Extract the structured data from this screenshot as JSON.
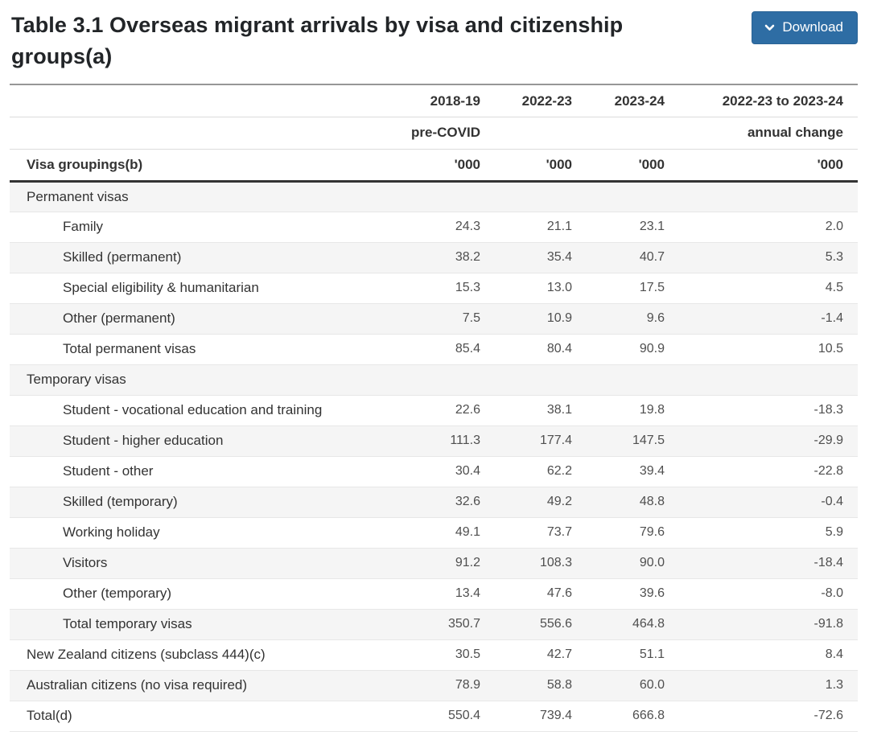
{
  "page": {
    "title": "Table 3.1 Overseas migrant arrivals by visa and citizenship groups(a)"
  },
  "toolbar": {
    "download_label": "Download"
  },
  "colors": {
    "accent_blue": "#2e6da4",
    "stripe_gray": "#f5f5f5",
    "header_rule_dark": "#333333"
  },
  "table": {
    "header": {
      "label_heading": "Visa groupings(b)",
      "years": [
        "2018-19",
        "2022-23",
        "2023-24",
        "2022-23 to 2023-24"
      ],
      "subrow": [
        "pre-COVID",
        "",
        "",
        "annual change"
      ],
      "units": [
        "'000",
        "'000",
        "'000",
        "'000"
      ]
    },
    "rows": [
      {
        "label": "Permanent visas",
        "indent": false,
        "values": [
          "",
          "",
          "",
          ""
        ]
      },
      {
        "label": "Family",
        "indent": true,
        "values": [
          "24.3",
          "21.1",
          "23.1",
          "2.0"
        ]
      },
      {
        "label": "Skilled (permanent)",
        "indent": true,
        "values": [
          "38.2",
          "35.4",
          "40.7",
          "5.3"
        ]
      },
      {
        "label": "Special eligibility & humanitarian",
        "indent": true,
        "values": [
          "15.3",
          "13.0",
          "17.5",
          "4.5"
        ]
      },
      {
        "label": "Other (permanent)",
        "indent": true,
        "values": [
          "7.5",
          "10.9",
          "9.6",
          "-1.4"
        ]
      },
      {
        "label": "Total permanent visas",
        "indent": true,
        "values": [
          "85.4",
          "80.4",
          "90.9",
          "10.5"
        ]
      },
      {
        "label": "Temporary visas",
        "indent": false,
        "values": [
          "",
          "",
          "",
          ""
        ]
      },
      {
        "label": "Student - vocational education and training",
        "indent": true,
        "values": [
          "22.6",
          "38.1",
          "19.8",
          "-18.3"
        ]
      },
      {
        "label": "Student - higher education",
        "indent": true,
        "values": [
          "111.3",
          "177.4",
          "147.5",
          "-29.9"
        ]
      },
      {
        "label": "Student - other",
        "indent": true,
        "values": [
          "30.4",
          "62.2",
          "39.4",
          "-22.8"
        ]
      },
      {
        "label": "Skilled (temporary)",
        "indent": true,
        "values": [
          "32.6",
          "49.2",
          "48.8",
          "-0.4"
        ]
      },
      {
        "label": "Working holiday",
        "indent": true,
        "values": [
          "49.1",
          "73.7",
          "79.6",
          "5.9"
        ]
      },
      {
        "label": "Visitors",
        "indent": true,
        "values": [
          "91.2",
          "108.3",
          "90.0",
          "-18.4"
        ]
      },
      {
        "label": "Other (temporary)",
        "indent": true,
        "values": [
          "13.4",
          "47.6",
          "39.6",
          "-8.0"
        ]
      },
      {
        "label": "Total temporary visas",
        "indent": true,
        "values": [
          "350.7",
          "556.6",
          "464.8",
          "-91.8"
        ]
      },
      {
        "label": "New Zealand citizens (subclass 444)(c)",
        "indent": false,
        "values": [
          "30.5",
          "42.7",
          "51.1",
          "8.4"
        ]
      },
      {
        "label": "Australian citizens (no visa required)",
        "indent": false,
        "values": [
          "78.9",
          "58.8",
          "60.0",
          "1.3"
        ]
      },
      {
        "label": "Total(d)",
        "indent": false,
        "values": [
          "550.4",
          "739.4",
          "666.8",
          "-72.6"
        ]
      }
    ]
  }
}
